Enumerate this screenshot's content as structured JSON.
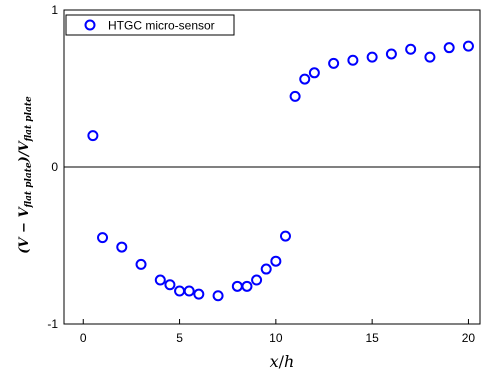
{
  "chart_data": {
    "type": "scatter",
    "series": [
      {
        "name": "HTGC micro-sensor",
        "color": "#0000ff",
        "marker": "open-circle",
        "x": [
          0.5,
          1,
          2,
          3,
          4,
          4.5,
          5,
          5.5,
          6,
          7,
          8,
          8.5,
          9,
          9.5,
          10,
          10.5,
          11,
          11.5,
          12,
          13,
          14,
          15,
          16,
          17,
          18,
          19,
          20
        ],
        "y": [
          0.2,
          -0.45,
          -0.51,
          -0.62,
          -0.72,
          -0.75,
          -0.79,
          -0.79,
          -0.81,
          -0.82,
          -0.76,
          -0.76,
          -0.72,
          -0.65,
          -0.6,
          -0.44,
          0.45,
          0.56,
          0.6,
          0.66,
          0.68,
          0.7,
          0.72,
          0.75,
          0.7,
          0.76,
          0.77
        ]
      }
    ],
    "xlabel_main": "x",
    "xlabel_sep": "/",
    "xlabel_den": "h",
    "ylabel_open": "(V − V",
    "ylabel_sub1": "flat plate",
    "ylabel_mid": ")/V",
    "ylabel_sub2": "flat plate",
    "xlim": [
      -1,
      20.6
    ],
    "ylim": [
      -1,
      1
    ],
    "xticks": [
      0,
      5,
      10,
      15,
      20
    ],
    "xtick_labels": [
      "0",
      "5",
      "10",
      "15",
      "20"
    ],
    "yticks": [
      -1,
      0,
      1
    ],
    "ytick_labels": [
      "-1",
      "0",
      "1"
    ],
    "zero_line": true,
    "legend_position": "top-left",
    "legend_label": "HTGC micro-sensor"
  }
}
